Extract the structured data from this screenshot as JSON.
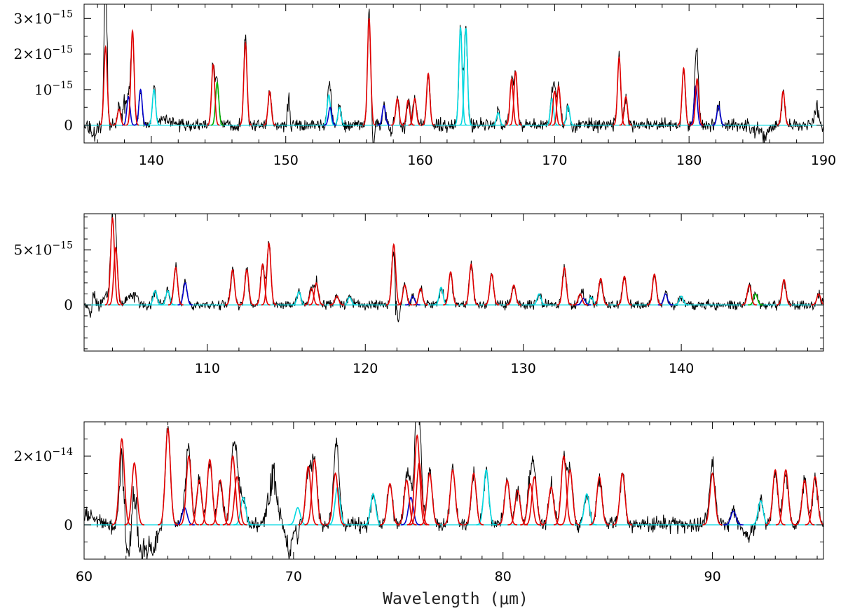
{
  "figure": {
    "xlabel": "Wavelength (μm)"
  },
  "colors": {
    "observed": "#000000",
    "red_model": "#e00000",
    "blue_model": "#0000cc",
    "cyan_model": "#00d8e0",
    "green_model": "#00b000",
    "frame": "#000000"
  },
  "chart_data": [
    {
      "type": "line",
      "panel": "top",
      "xlim": [
        135,
        190
      ],
      "ylim": [
        -0.5,
        3.4
      ],
      "y_unit_exponent": -15,
      "xticks": [
        140,
        150,
        160,
        170,
        180,
        190
      ],
      "yticks": [
        {
          "value": 0,
          "mantissa": "0",
          "exp": ""
        },
        {
          "value": 1,
          "mantissa": "10",
          "exp": "−15"
        },
        {
          "value": 2,
          "mantissa": "2×10",
          "exp": "−15"
        },
        {
          "value": 3,
          "mantissa": "3×10",
          "exp": "−15"
        }
      ],
      "noise_sigma": 0.09,
      "series": [
        {
          "color": "red",
          "peaks": [
            [
              136.6,
              2.2
            ],
            [
              137.6,
              0.45
            ],
            [
              138.6,
              2.65
            ],
            [
              144.6,
              1.7
            ],
            [
              147.0,
              2.3
            ],
            [
              148.8,
              0.95
            ],
            [
              156.2,
              3.0
            ],
            [
              158.3,
              0.75
            ],
            [
              159.1,
              0.7
            ],
            [
              159.6,
              0.75
            ],
            [
              160.6,
              1.45
            ],
            [
              166.8,
              1.3
            ],
            [
              167.1,
              1.5
            ],
            [
              170.0,
              0.95
            ],
            [
              170.3,
              1.1
            ],
            [
              174.8,
              1.9
            ],
            [
              175.3,
              0.8
            ],
            [
              179.6,
              1.6
            ],
            [
              180.6,
              1.3
            ],
            [
              187.0,
              0.95
            ]
          ]
        },
        {
          "color": "blue",
          "peaks": [
            [
              138.3,
              0.8
            ],
            [
              139.2,
              1.0
            ],
            [
              153.3,
              0.5
            ],
            [
              157.3,
              0.55
            ],
            [
              180.5,
              1.1
            ],
            [
              182.2,
              0.55
            ]
          ]
        },
        {
          "color": "cyan",
          "peaks": [
            [
              140.2,
              1.0
            ],
            [
              153.2,
              0.85
            ],
            [
              154.0,
              0.5
            ],
            [
              163.0,
              2.75
            ],
            [
              163.4,
              2.72
            ],
            [
              165.8,
              0.35
            ],
            [
              169.8,
              0.75
            ],
            [
              171.0,
              0.55
            ]
          ]
        },
        {
          "color": "green",
          "peaks": [
            [
              144.9,
              1.2
            ]
          ]
        }
      ],
      "observed_extra": [
        [
          135.7,
          -0.3,
          0.15
        ],
        [
          136.6,
          2.5,
          0.08
        ],
        [
          138.0,
          0.6,
          0.1
        ],
        [
          141.0,
          0.2,
          0.5
        ],
        [
          150.2,
          0.7,
          0.08
        ],
        [
          156.5,
          -0.7,
          0.08
        ],
        [
          157.8,
          -0.35,
          0.08
        ],
        [
          158.9,
          -0.2,
          0.1
        ],
        [
          184.8,
          -0.25,
          0.15
        ],
        [
          185.6,
          -0.35,
          0.2
        ],
        [
          189.5,
          0.5,
          0.15
        ]
      ]
    },
    {
      "type": "line",
      "panel": "middle",
      "xlim": [
        102.2,
        149
      ],
      "ylim": [
        -4.2,
        8.3
      ],
      "y_unit_exponent": -15,
      "xticks": [
        110,
        120,
        130,
        140
      ],
      "yticks": [
        {
          "value": 0,
          "mantissa": "0",
          "exp": ""
        },
        {
          "value": 5,
          "mantissa": "5×10",
          "exp": "−15"
        }
      ],
      "noise_sigma": 0.22,
      "series": [
        {
          "color": "red",
          "peaks": [
            [
              104.0,
              7.9
            ],
            [
              104.2,
              5.2
            ],
            [
              108.0,
              3.4
            ],
            [
              111.6,
              3.2
            ],
            [
              112.5,
              3.2
            ],
            [
              113.5,
              3.7
            ],
            [
              113.9,
              5.6
            ],
            [
              116.6,
              1.5
            ],
            [
              116.9,
              2.0
            ],
            [
              118.2,
              0.8
            ],
            [
              121.8,
              5.5
            ],
            [
              122.5,
              1.8
            ],
            [
              123.5,
              1.5
            ],
            [
              125.4,
              3.0
            ],
            [
              126.7,
              3.7
            ],
            [
              128.0,
              2.8
            ],
            [
              129.4,
              1.8
            ],
            [
              132.6,
              3.4
            ],
            [
              133.6,
              1.0
            ],
            [
              134.9,
              2.4
            ],
            [
              136.4,
              2.6
            ],
            [
              138.3,
              2.8
            ],
            [
              144.3,
              1.8
            ],
            [
              146.5,
              2.3
            ],
            [
              148.7,
              1.0
            ]
          ]
        },
        {
          "color": "blue",
          "peaks": [
            [
              108.6,
              2.0
            ],
            [
              123.0,
              0.8
            ],
            [
              133.8,
              0.6
            ],
            [
              139.0,
              1.0
            ]
          ]
        },
        {
          "color": "cyan",
          "peaks": [
            [
              106.7,
              1.3
            ],
            [
              107.5,
              1.3
            ],
            [
              115.8,
              1.2
            ],
            [
              119.0,
              0.7
            ],
            [
              124.8,
              1.6
            ],
            [
              131.0,
              1.0
            ],
            [
              134.3,
              0.7
            ],
            [
              140.0,
              0.8
            ]
          ]
        },
        {
          "color": "green",
          "peaks": [
            [
              144.7,
              1.0
            ]
          ]
        }
      ],
      "observed_extra": [
        [
          102.6,
          -1.0,
          0.1
        ],
        [
          102.8,
          1.2,
          0.1
        ],
        [
          103.6,
          1.0,
          0.15
        ],
        [
          105.3,
          1.0,
          0.3
        ],
        [
          121.9,
          -3.3,
          0.06
        ],
        [
          122.1,
          -1.5,
          0.08
        ]
      ]
    },
    {
      "type": "line",
      "panel": "bottom",
      "xlim": [
        60,
        95.3
      ],
      "ylim": [
        -1.0,
        3.0
      ],
      "y_unit_exponent": -14,
      "xticks": [
        60,
        70,
        80,
        90
      ],
      "yticks": [
        {
          "value": 0,
          "mantissa": "0",
          "exp": ""
        },
        {
          "value": 2,
          "mantissa": "2×10",
          "exp": "−14"
        }
      ],
      "noise_sigma": 0.1,
      "series": [
        {
          "color": "red",
          "peaks": [
            [
              61.8,
              2.5
            ],
            [
              62.4,
              1.8
            ],
            [
              64.0,
              2.8
            ],
            [
              65.0,
              2.0
            ],
            [
              65.5,
              1.3
            ],
            [
              66.0,
              1.9
            ],
            [
              66.5,
              1.3
            ],
            [
              67.1,
              2.0
            ],
            [
              67.3,
              1.4
            ],
            [
              70.7,
              1.7
            ],
            [
              71.0,
              1.9
            ],
            [
              72.0,
              1.5
            ],
            [
              74.6,
              1.2
            ],
            [
              75.4,
              1.3
            ],
            [
              75.9,
              2.6
            ],
            [
              76.0,
              1.8
            ],
            [
              76.5,
              1.5
            ],
            [
              77.6,
              1.6
            ],
            [
              78.6,
              1.5
            ],
            [
              80.2,
              1.3
            ],
            [
              80.7,
              1.0
            ],
            [
              81.3,
              1.2
            ],
            [
              81.5,
              1.4
            ],
            [
              82.3,
              1.1
            ],
            [
              82.9,
              2.0
            ],
            [
              83.2,
              1.6
            ],
            [
              84.6,
              1.4
            ],
            [
              85.7,
              1.5
            ],
            [
              90.0,
              1.5
            ],
            [
              93.0,
              1.6
            ],
            [
              93.5,
              1.6
            ],
            [
              94.4,
              1.3
            ],
            [
              94.9,
              1.4
            ]
          ]
        },
        {
          "color": "blue",
          "peaks": [
            [
              64.8,
              0.5
            ],
            [
              75.6,
              0.8
            ],
            [
              91.0,
              0.4
            ]
          ]
        },
        {
          "color": "cyan",
          "peaks": [
            [
              67.6,
              0.8
            ],
            [
              70.2,
              0.5
            ],
            [
              72.1,
              1.1
            ],
            [
              73.8,
              0.9
            ],
            [
              79.2,
              1.6
            ],
            [
              84.0,
              0.9
            ],
            [
              92.3,
              0.7
            ]
          ]
        },
        {
          "color": "green",
          "peaks": []
        }
      ],
      "observed_extra": [
        [
          60.1,
          0.3,
          0.5
        ],
        [
          62.0,
          -0.9,
          0.3
        ],
        [
          62.6,
          -0.8,
          0.25
        ],
        [
          63.2,
          -0.7,
          0.25
        ],
        [
          69.0,
          1.3,
          0.2
        ],
        [
          69.8,
          -0.8,
          0.15
        ],
        [
          70.2,
          -0.9,
          0.08
        ],
        [
          89.9,
          0.3,
          0.2
        ],
        [
          91.7,
          -0.3,
          0.2
        ]
      ]
    }
  ]
}
